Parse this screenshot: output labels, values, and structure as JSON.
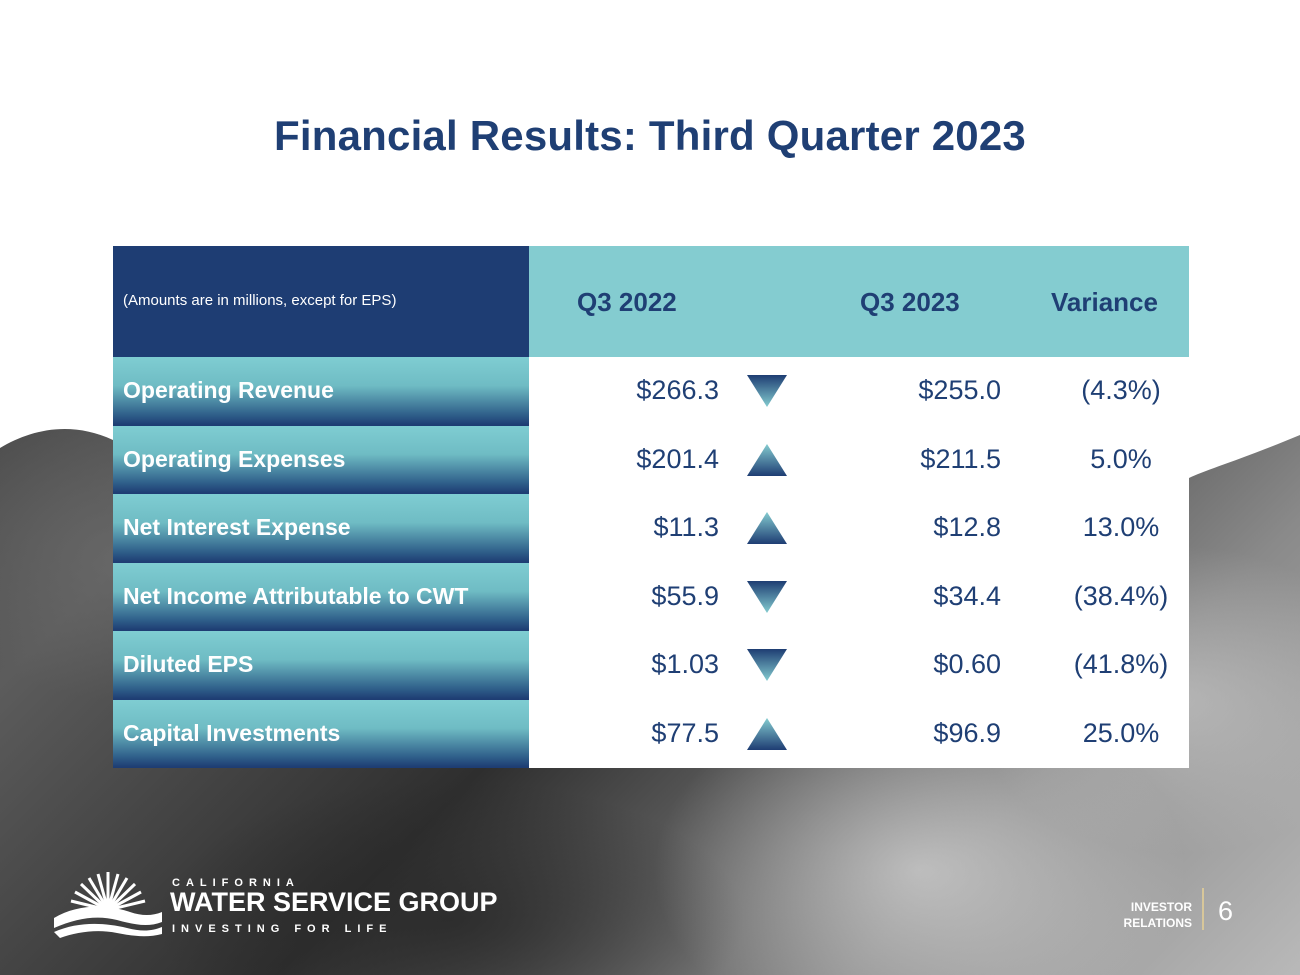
{
  "slide": {
    "title": "Financial Results: Third Quarter 2023",
    "page_number": "6"
  },
  "table": {
    "note": "(Amounts are in millions, except for EPS)",
    "columns": [
      "Q3 2022",
      "Q3 2023",
      "Variance"
    ],
    "rows": [
      {
        "label": "Operating Revenue",
        "q3_2022": "$266.3",
        "trend": "down",
        "q3_2023": "$255.0",
        "variance": "(4.3%)"
      },
      {
        "label": "Operating Expenses",
        "q3_2022": "$201.4",
        "trend": "up",
        "q3_2023": "$211.5",
        "variance": "5.0%"
      },
      {
        "label": "Net Interest Expense",
        "q3_2022": "$11.3",
        "trend": "up",
        "q3_2023": "$12.8",
        "variance": "13.0%"
      },
      {
        "label": "Net Income Attributable to CWT",
        "q3_2022": "$55.9",
        "trend": "down",
        "q3_2023": "$34.4",
        "variance": "(38.4%)"
      },
      {
        "label": "Diluted EPS",
        "q3_2022": "$1.03",
        "trend": "down",
        "q3_2023": "$0.60",
        "variance": "(41.8%)"
      },
      {
        "label": "Capital Investments",
        "q3_2022": "$77.5",
        "trend": "up",
        "q3_2023": "$96.9",
        "variance": "25.0%"
      }
    ]
  },
  "footer": {
    "logo_top": "CALIFORNIA",
    "logo_main": "WATER SERVICE GROUP",
    "logo_tagline": "INVESTING FOR LIFE",
    "section_line1": "INVESTOR",
    "section_line2": "RELATIONS"
  },
  "colors": {
    "navy": "#1e3d73",
    "teal": "#84ccd0",
    "title": "#1f3f74"
  }
}
